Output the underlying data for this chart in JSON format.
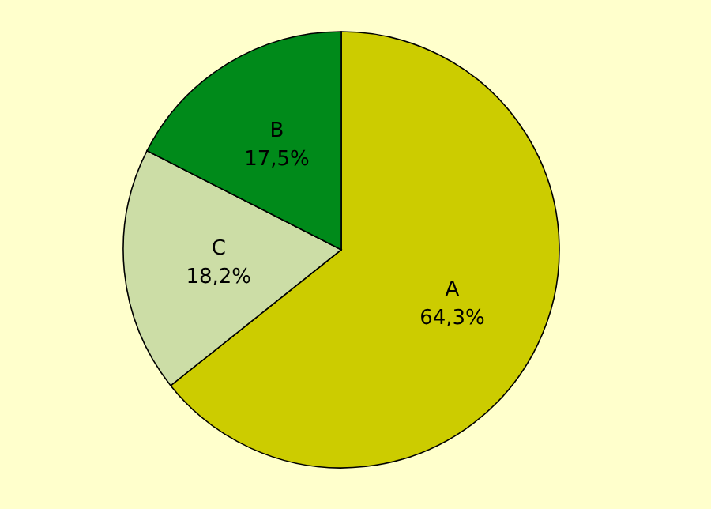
{
  "chart_data": {
    "type": "pie",
    "categories": [
      "A",
      "C",
      "B"
    ],
    "values": [
      64.3,
      18.2,
      17.5
    ],
    "colors": [
      "#cccc00",
      "#ccdda6",
      "#008a1a"
    ],
    "value_labels": [
      "64,3%",
      "18,2%",
      "17,5%"
    ]
  }
}
